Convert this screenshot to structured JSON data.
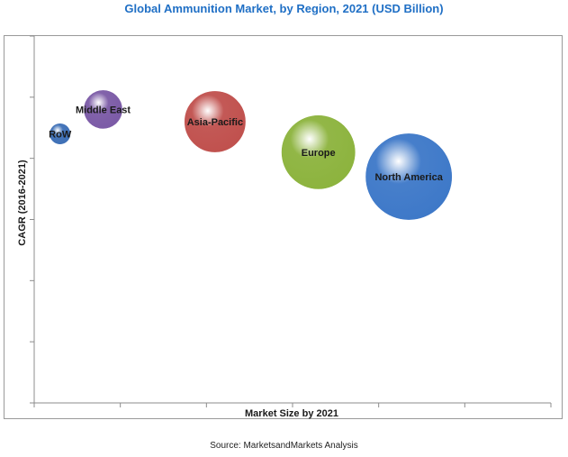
{
  "chart_data": {
    "type": "bubble",
    "title": "Global Ammunition Market, by Region, 2021 (USD Billion)",
    "xlabel": "Market Size by 2021",
    "ylabel": "CAGR (2016-2021)",
    "source": "Source: MarketsandMarkets Analysis",
    "x_ticks_labeled": false,
    "y_ticks_labeled": false,
    "grid": false,
    "legend": "none",
    "series": [
      {
        "label": "RoW",
        "x": 0.3,
        "y": 4.4,
        "size": 0.8,
        "color": "#3d6fb6"
      },
      {
        "label": "Middle East",
        "x": 0.8,
        "y": 4.8,
        "size": 1.5,
        "color": "#7b5aa6"
      },
      {
        "label": "Asia-Pacific",
        "x": 2.1,
        "y": 4.6,
        "size": 2.4,
        "color": "#c0504d"
      },
      {
        "label": "Europe",
        "x": 3.3,
        "y": 4.1,
        "size": 2.9,
        "color": "#8cb33d"
      },
      {
        "label": "North America",
        "x": 4.35,
        "y": 3.7,
        "size": 3.4,
        "color": "#3d78c8"
      }
    ]
  }
}
